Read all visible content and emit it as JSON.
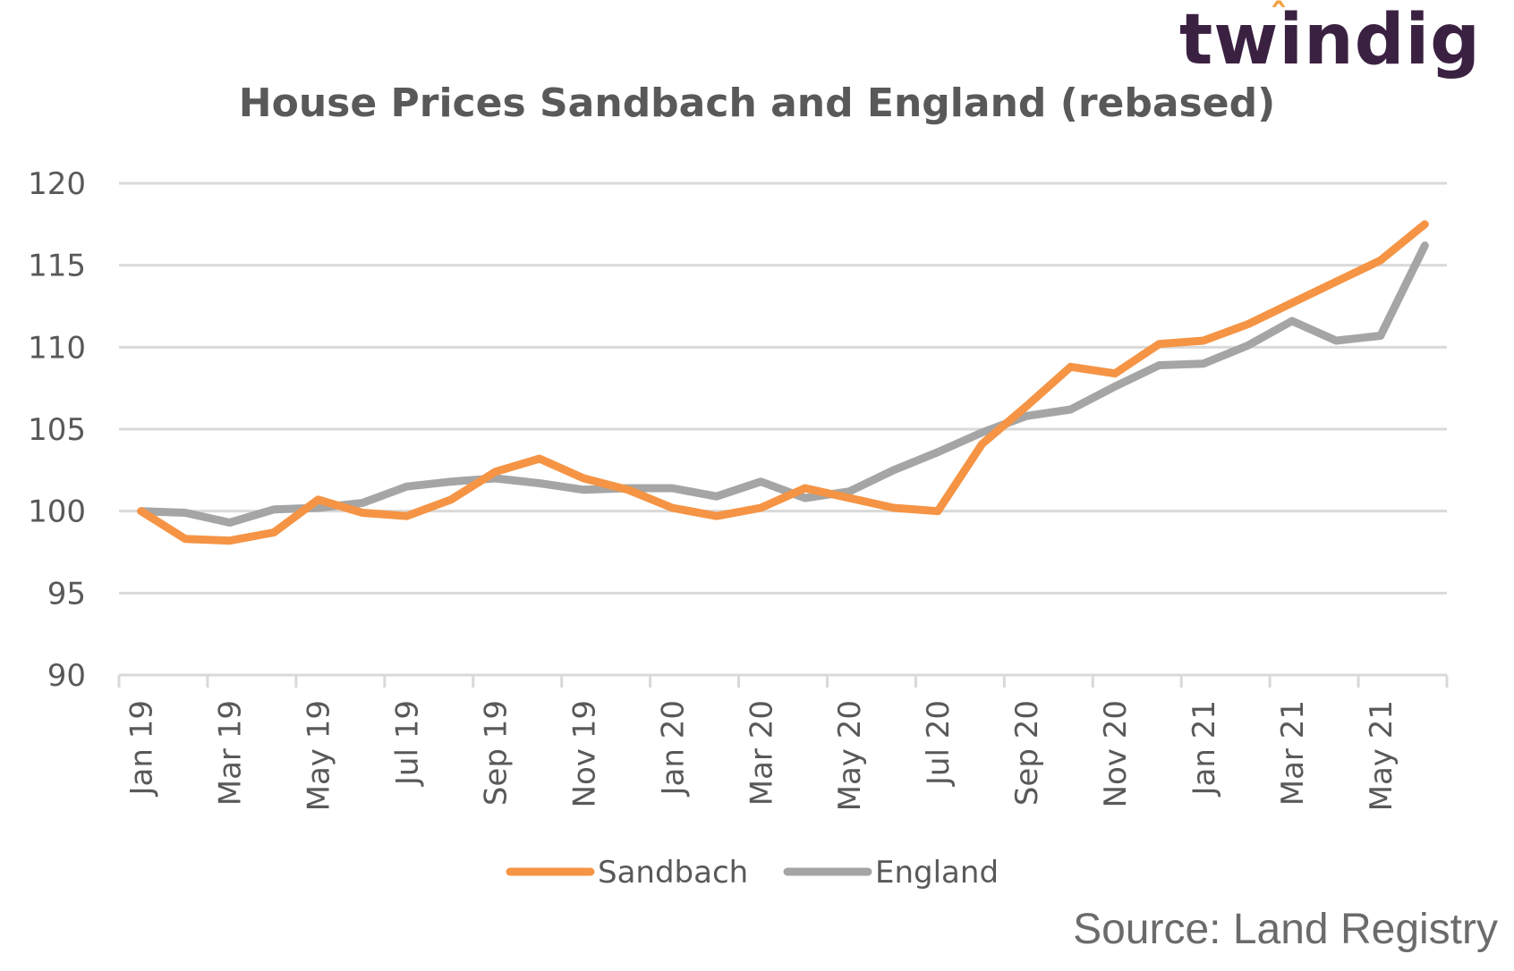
{
  "logo": {
    "text": "twindig"
  },
  "source": "Source: Land Registry",
  "colors": {
    "sandbach": "#f59444",
    "england": "#a5a5a5",
    "grid": "#d9d9d9",
    "text": "#595959",
    "logo": "#3b2141",
    "logo_accent": "#f5a040"
  },
  "chart_data": {
    "type": "line",
    "title": "House Prices Sandbach and England (rebased)",
    "xlabel": "",
    "ylabel": "",
    "ylim": [
      90,
      120
    ],
    "yticks": [
      90,
      95,
      100,
      105,
      110,
      115,
      120
    ],
    "grid": true,
    "legend_position": "bottom",
    "categories": [
      "Jan 19",
      "Feb 19",
      "Mar 19",
      "Apr 19",
      "May 19",
      "Jun 19",
      "Jul 19",
      "Aug 19",
      "Sep 19",
      "Oct 19",
      "Nov 19",
      "Dec 19",
      "Jan 20",
      "Feb 20",
      "Mar 20",
      "Apr 20",
      "May 20",
      "Jun 20",
      "Jul 20",
      "Aug 20",
      "Sep 20",
      "Oct 20",
      "Nov 20",
      "Dec 20",
      "Jan 21",
      "Feb 21",
      "Mar 21",
      "Apr 21",
      "May 21",
      "Jun 21"
    ],
    "tick_labels": [
      "Jan 19",
      "Mar 19",
      "May 19",
      "Jul 19",
      "Sep 19",
      "Nov 19",
      "Jan 20",
      "Mar 20",
      "May 20",
      "Jul 20",
      "Sep 20",
      "Nov 20",
      "Jan 21",
      "Mar 21",
      "May 21"
    ],
    "series": [
      {
        "name": "Sandbach",
        "color": "#f59444",
        "values": [
          100.0,
          98.3,
          98.2,
          98.7,
          100.7,
          99.9,
          99.7,
          100.7,
          102.4,
          103.2,
          102.0,
          101.3,
          100.2,
          99.7,
          100.2,
          101.4,
          100.8,
          100.2,
          100.0,
          104.1,
          106.4,
          108.8,
          108.4,
          110.2,
          110.4,
          111.4,
          112.7,
          114.0,
          115.3,
          117.5
        ]
      },
      {
        "name": "England",
        "color": "#a5a5a5",
        "values": [
          100.0,
          99.9,
          99.3,
          100.1,
          100.2,
          100.5,
          101.5,
          101.8,
          102.0,
          101.7,
          101.3,
          101.4,
          101.4,
          100.9,
          101.8,
          100.8,
          101.2,
          102.5,
          103.6,
          104.8,
          105.8,
          106.2,
          107.6,
          108.9,
          109.0,
          110.1,
          111.6,
          110.4,
          110.7,
          116.2
        ]
      }
    ]
  }
}
